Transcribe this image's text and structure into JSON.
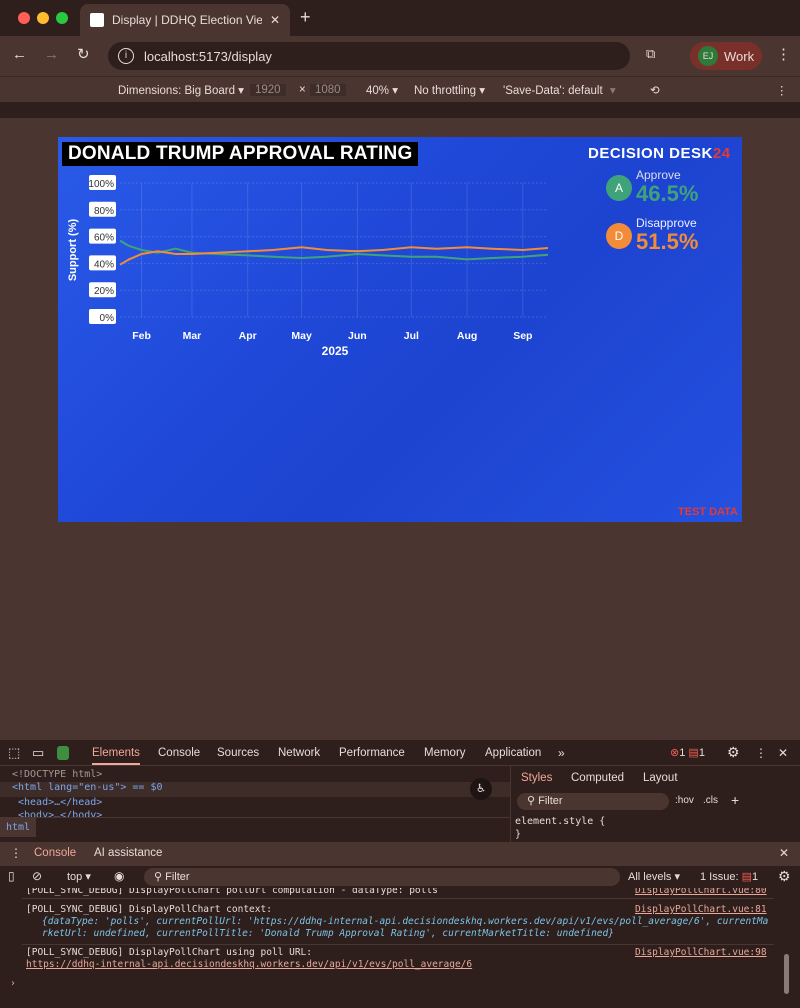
{
  "browser": {
    "tab_title": "Display | DDHQ Election View",
    "url": "localhost:5173/display",
    "profile": {
      "initials": "EJ",
      "name": "Work"
    }
  },
  "emulation": {
    "dimensions": "Dimensions: Big Board",
    "width": "1920",
    "height": "1080",
    "x_sep": "×",
    "zoom": "40%",
    "throttling": "No throttling",
    "save_data": "'Save-Data': default"
  },
  "board": {
    "title": "DONALD TRUMP APPROVAL RATING",
    "logo": "DECISION DESK",
    "logo_suffix": "24",
    "watermark": "TEST DATA",
    "legend": [
      {
        "badge": "A",
        "label": "Approve",
        "value": "46.5%",
        "color": "#3fa37a"
      },
      {
        "badge": "D",
        "label": "Disapprove",
        "value": "51.5%",
        "color": "#f28c38"
      }
    ]
  },
  "chart_data": {
    "type": "line",
    "ylabel": "Support (%)",
    "xlabel": "2025",
    "ylim": [
      0,
      100
    ],
    "yticks": [
      "0%",
      "20%",
      "40%",
      "60%",
      "80%",
      "100%"
    ],
    "xticks": [
      "Feb",
      "Mar",
      "Apr",
      "May",
      "Jun",
      "Jul",
      "Aug",
      "Sep"
    ],
    "grid": true,
    "x": [
      "2025-01-20",
      "2025-01-25",
      "2025-02-01",
      "2025-02-10",
      "2025-02-20",
      "2025-03-01",
      "2025-03-15",
      "2025-04-01",
      "2025-04-15",
      "2025-05-01",
      "2025-05-15",
      "2025-06-01",
      "2025-06-15",
      "2025-07-01",
      "2025-07-15",
      "2025-08-01",
      "2025-08-15",
      "2025-09-01",
      "2025-09-15"
    ],
    "series": [
      {
        "name": "Approve",
        "color": "#3fa37a",
        "values": [
          57,
          53,
          50,
          48,
          51,
          48,
          47,
          46,
          45,
          44,
          45,
          47,
          46,
          45,
          45,
          43,
          44,
          45,
          46.5
        ]
      },
      {
        "name": "Disapprove",
        "color": "#f28c38",
        "values": [
          39,
          43,
          47,
          49,
          47,
          47,
          48,
          49,
          50,
          52,
          50,
          49,
          50,
          52,
          51,
          52,
          51,
          50,
          51.5
        ]
      }
    ]
  },
  "devtools": {
    "tabs": [
      "Elements",
      "Console",
      "Sources",
      "Network",
      "Performance",
      "Memory",
      "Application"
    ],
    "errors": "1",
    "warnings": "1",
    "dom": [
      "<!DOCTYPE html>",
      "<html lang=\"en-us\"> == $0",
      "<head>…</head>",
      "<body>…</body>"
    ],
    "breadcrumb": "html",
    "styles_tabs": [
      "Styles",
      "Computed",
      "Layout"
    ],
    "styles_filter": "Filter",
    "hov": ":hov",
    "cls": ".cls",
    "element_style": "element.style {",
    "close_brace": "}",
    "drawer_tabs": [
      "Console",
      "AI assistance"
    ],
    "context": "top",
    "filter": "Filter",
    "levels": "All levels",
    "issues": "1 Issue:",
    "issues_count": "1",
    "logs": [
      {
        "text": "[POLL_SYNC_DEBUG] DisplayPollChart pollUrl computation - dataType: polls",
        "src": "DisplayPollChart.vue:80"
      },
      {
        "text": "[POLL_SYNC_DEBUG] DisplayPollChart context:",
        "src": "DisplayPollChart.vue:81",
        "detail": "{dataType: 'polls', currentPollUrl: 'https://ddhq-internal-api.decisiondeskhq.workers.dev/api/v1/evs/poll_average/6', currentMarketUrl: undefined, currentPollTitle: 'Donald Trump Approval Rating', currentMarketTitle: undefined}"
      },
      {
        "text": "[POLL_SYNC_DEBUG] DisplayPollChart using poll URL:",
        "src": "DisplayPollChart.vue:98",
        "link": "https://ddhq-internal-api.decisiondeskhq.workers.dev/api/v1/evs/poll_average/6"
      }
    ]
  }
}
